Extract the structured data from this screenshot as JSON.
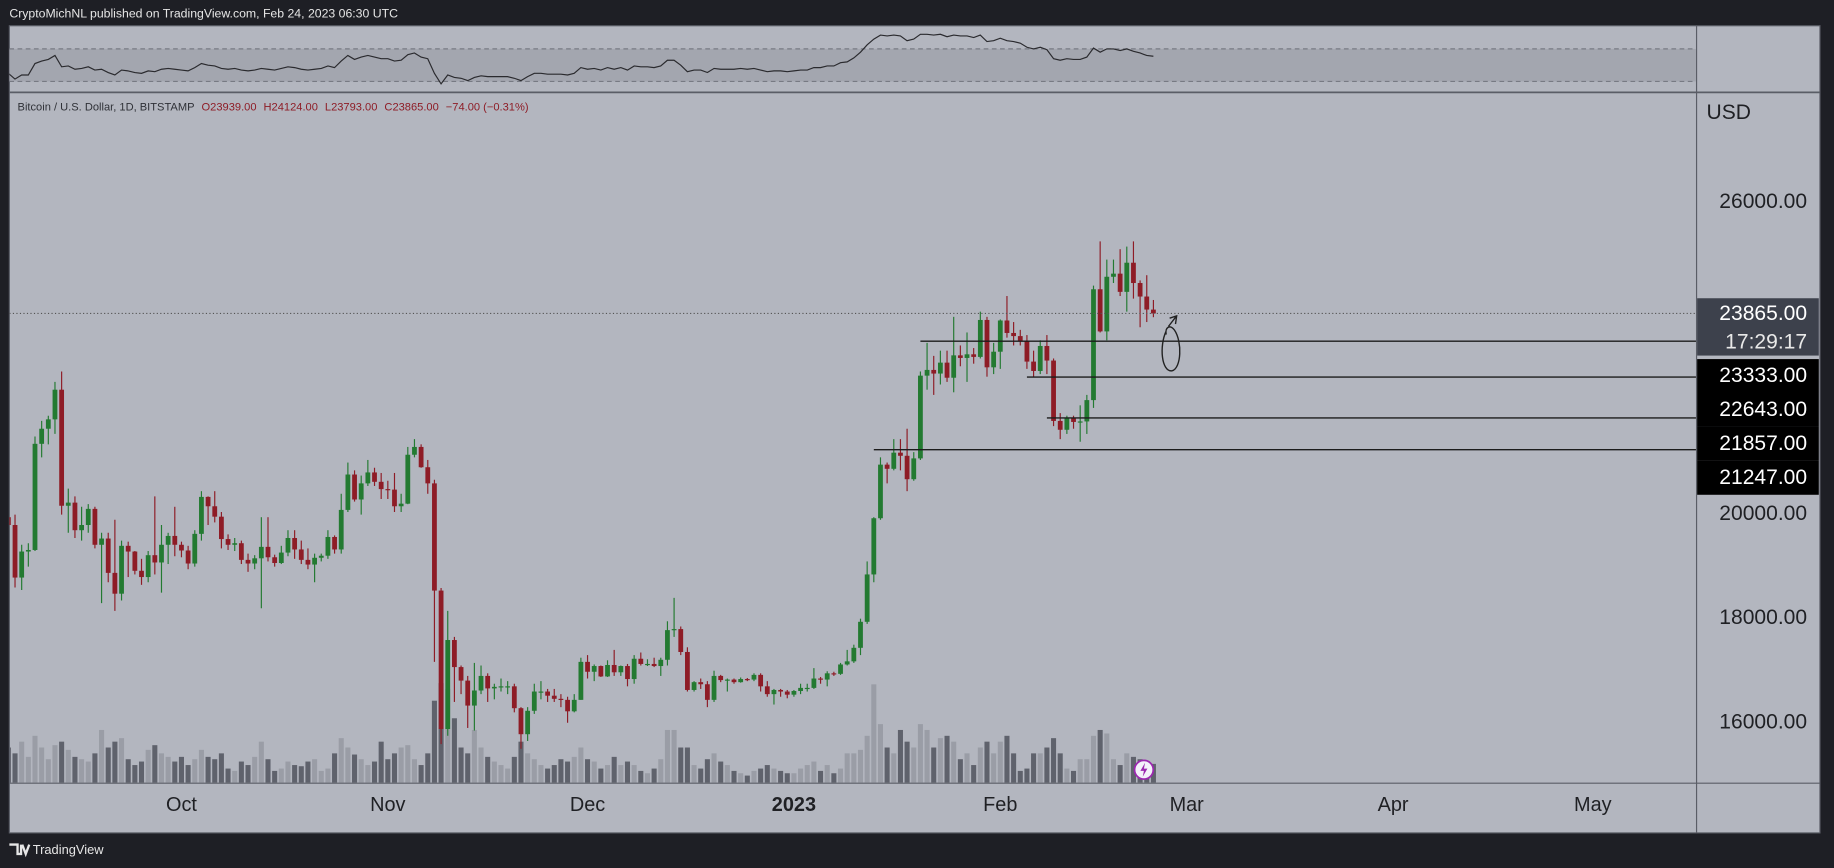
{
  "header": {
    "publisher": "CryptoMichNL published on TradingView.com, Feb 24, 2023 06:30 UTC"
  },
  "footer": {
    "brand": "TradingView"
  },
  "chart_data": {
    "type": "candlestick",
    "symbol": "Bitcoin / U.S. Dollar, 1D, BITSTAMP",
    "ohlc_legend": [
      "O23939.00",
      "H24124.00",
      "L23793.00",
      "C23865.00",
      "−74.00 (−0.31%)"
    ],
    "currency": "USD",
    "xlim": [
      0.5,
      253.5
    ],
    "ylim": [
      14850,
      28090
    ],
    "xticks": [
      {
        "value": 26,
        "label": "Oct"
      },
      {
        "value": 57,
        "label": "Nov"
      },
      {
        "value": 87,
        "label": "Dec"
      },
      {
        "value": 118,
        "label": "2023"
      },
      {
        "value": 149,
        "label": "Feb"
      },
      {
        "value": 177,
        "label": "Mar"
      },
      {
        "value": 208,
        "label": "Apr"
      },
      {
        "value": 238,
        "label": "May"
      }
    ],
    "yticks": [
      {
        "value": 16000,
        "label": "16000.00"
      },
      {
        "value": 18000,
        "label": "18000.00"
      },
      {
        "value": 20000,
        "label": "20000.00"
      },
      {
        "value": 26000,
        "label": "26000.00"
      }
    ],
    "grid": false,
    "colors": {
      "up": "#237a31",
      "down": "#8e1c26",
      "volume_up": "#9a9da6",
      "volume_down": "#5f626c",
      "rsi": "#2a2a2e",
      "level": "#1c1c1c"
    },
    "last_price": {
      "value": 23865,
      "label": "23865.00"
    },
    "countdown": "17:29:17",
    "levels": [
      {
        "value": 23333,
        "label": "23333.00",
        "start": 137
      },
      {
        "value": 22643,
        "label": "22643.00",
        "start": 153
      },
      {
        "value": 21857,
        "label": "21857.00",
        "start": 156
      },
      {
        "value": 21247,
        "label": "21247.00",
        "start": 130
      }
    ],
    "ohlc": [
      [
        19950,
        20050,
        19600,
        19800
      ],
      [
        19800,
        20000,
        18600,
        18790
      ],
      [
        18790,
        19420,
        18550,
        19290
      ],
      [
        19290,
        19450,
        19000,
        19320
      ],
      [
        19320,
        21500,
        19300,
        21360
      ],
      [
        21360,
        21800,
        21100,
        21650
      ],
      [
        21650,
        21900,
        21350,
        21830
      ],
      [
        21830,
        22550,
        21550,
        22400
      ],
      [
        22400,
        22750,
        20000,
        20170
      ],
      [
        20170,
        20500,
        19650,
        20230
      ],
      [
        20230,
        20350,
        19550,
        19700
      ],
      [
        19700,
        20150,
        19500,
        19800
      ],
      [
        19800,
        20200,
        19650,
        20110
      ],
      [
        20110,
        20150,
        19350,
        19420
      ],
      [
        19420,
        19650,
        18300,
        19540
      ],
      [
        19540,
        19650,
        18700,
        18880
      ],
      [
        18880,
        19900,
        18150,
        18480
      ],
      [
        18480,
        19500,
        18350,
        19400
      ],
      [
        19400,
        19480,
        18800,
        19290
      ],
      [
        19290,
        19300,
        18850,
        18920
      ],
      [
        18920,
        19150,
        18650,
        18800
      ],
      [
        18800,
        19300,
        18700,
        19220
      ],
      [
        19220,
        20350,
        18850,
        19080
      ],
      [
        19080,
        19800,
        18500,
        19420
      ],
      [
        19420,
        19650,
        19050,
        19590
      ],
      [
        19590,
        20150,
        19200,
        19420
      ],
      [
        19420,
        19480,
        19180,
        19310
      ],
      [
        19310,
        19400,
        18950,
        19060
      ],
      [
        19060,
        19700,
        19000,
        19630
      ],
      [
        19630,
        20450,
        19500,
        20340
      ],
      [
        20340,
        20350,
        19800,
        20160
      ],
      [
        20160,
        20450,
        19850,
        19960
      ],
      [
        19960,
        20050,
        19350,
        19530
      ],
      [
        19530,
        19620,
        19320,
        19420
      ],
      [
        19420,
        19550,
        19300,
        19450
      ],
      [
        19450,
        19500,
        19050,
        19130
      ],
      [
        19130,
        19250,
        18900,
        19060
      ],
      [
        19060,
        19220,
        18950,
        19160
      ],
      [
        19160,
        19950,
        18200,
        19380
      ],
      [
        19380,
        19950,
        19100,
        19180
      ],
      [
        19180,
        19230,
        19000,
        19070
      ],
      [
        19070,
        19400,
        19050,
        19270
      ],
      [
        19270,
        19700,
        19200,
        19550
      ],
      [
        19550,
        19700,
        19150,
        19330
      ],
      [
        19330,
        19500,
        19050,
        19130
      ],
      [
        19130,
        19350,
        18950,
        19040
      ],
      [
        19040,
        19250,
        18700,
        19170
      ],
      [
        19170,
        19250,
        19100,
        19210
      ],
      [
        19210,
        19700,
        19150,
        19570
      ],
      [
        19570,
        19600,
        19250,
        19330
      ],
      [
        19330,
        20400,
        19250,
        20090
      ],
      [
        20090,
        21000,
        20050,
        20770
      ],
      [
        20770,
        20850,
        20250,
        20290
      ],
      [
        20290,
        20750,
        20000,
        20600
      ],
      [
        20600,
        21050,
        20550,
        20810
      ],
      [
        20810,
        20900,
        20550,
        20630
      ],
      [
        20630,
        20800,
        20300,
        20490
      ],
      [
        20490,
        20650,
        20300,
        20480
      ],
      [
        20480,
        20800,
        20050,
        20160
      ],
      [
        20160,
        20400,
        20050,
        20210
      ],
      [
        20210,
        21300,
        20200,
        21150
      ],
      [
        21150,
        21450,
        21100,
        21300
      ],
      [
        21300,
        21350,
        20900,
        20910
      ],
      [
        20910,
        21050,
        20400,
        20600
      ],
      [
        20600,
        20670,
        17170,
        18540
      ],
      [
        18540,
        18590,
        15590,
        15880
      ],
      [
        15880,
        18150,
        15750,
        17590
      ],
      [
        17590,
        17650,
        16400,
        17070
      ],
      [
        17070,
        17100,
        16550,
        16810
      ],
      [
        16810,
        16900,
        15900,
        16330
      ],
      [
        16330,
        17150,
        15850,
        16620
      ],
      [
        16620,
        17100,
        16550,
        16900
      ],
      [
        16900,
        16950,
        16400,
        16660
      ],
      [
        16660,
        16750,
        16450,
        16690
      ],
      [
        16690,
        16850,
        16600,
        16700
      ],
      [
        16700,
        16800,
        16550,
        16700
      ],
      [
        16700,
        16750,
        16200,
        16280
      ],
      [
        16280,
        16300,
        15500,
        15780
      ],
      [
        15780,
        16300,
        15650,
        16230
      ],
      [
        16230,
        16750,
        16170,
        16600
      ],
      [
        16600,
        16800,
        16450,
        16600
      ],
      [
        16600,
        16650,
        16400,
        16520
      ],
      [
        16520,
        16650,
        16400,
        16460
      ],
      [
        16460,
        16550,
        16300,
        16440
      ],
      [
        16440,
        16500,
        16000,
        16220
      ],
      [
        16220,
        16550,
        16200,
        16440
      ],
      [
        16440,
        17250,
        16440,
        17170
      ],
      [
        17170,
        17300,
        16850,
        16980
      ],
      [
        16980,
        17120,
        16800,
        17090
      ],
      [
        17090,
        17100,
        16880,
        16890
      ],
      [
        16890,
        17200,
        16880,
        17110
      ],
      [
        17110,
        17400,
        16900,
        16970
      ],
      [
        16970,
        17100,
        16900,
        17090
      ],
      [
        17090,
        17130,
        16700,
        16840
      ],
      [
        16840,
        17300,
        16750,
        17230
      ],
      [
        17230,
        17350,
        17100,
        17130
      ],
      [
        17130,
        17220,
        17090,
        17130
      ],
      [
        17130,
        17250,
        17070,
        17090
      ],
      [
        17090,
        17250,
        16900,
        17210
      ],
      [
        17210,
        17950,
        17100,
        17780
      ],
      [
        17780,
        18400,
        17650,
        17800
      ],
      [
        17800,
        17850,
        17300,
        17360
      ],
      [
        17360,
        17450,
        16600,
        16630
      ],
      [
        16630,
        16800,
        16600,
        16780
      ],
      [
        16780,
        16850,
        16650,
        16740
      ],
      [
        16740,
        16800,
        16300,
        16440
      ],
      [
        16440,
        17000,
        16400,
        16900
      ],
      [
        16900,
        16920,
        16780,
        16820
      ],
      [
        16820,
        16850,
        16600,
        16830
      ],
      [
        16830,
        16850,
        16750,
        16780
      ],
      [
        16780,
        16870,
        16770,
        16840
      ],
      [
        16840,
        16860,
        16800,
        16830
      ],
      [
        16830,
        16950,
        16800,
        16920
      ],
      [
        16920,
        16950,
        16600,
        16700
      ],
      [
        16700,
        16800,
        16500,
        16550
      ],
      [
        16550,
        16650,
        16350,
        16630
      ],
      [
        16630,
        16650,
        16500,
        16600
      ],
      [
        16600,
        16630,
        16470,
        16540
      ],
      [
        16540,
        16630,
        16500,
        16610
      ],
      [
        16610,
        16750,
        16550,
        16670
      ],
      [
        16670,
        16750,
        16600,
        16670
      ],
      [
        16670,
        17050,
        16650,
        16850
      ],
      [
        16850,
        16880,
        16750,
        16830
      ],
      [
        16830,
        16990,
        16700,
        16950
      ],
      [
        16950,
        16980,
        16900,
        16940
      ],
      [
        16940,
        17150,
        16920,
        17120
      ],
      [
        17120,
        17400,
        17100,
        17180
      ],
      [
        17180,
        17500,
        17150,
        17440
      ],
      [
        17440,
        18000,
        17300,
        17940
      ],
      [
        17940,
        19100,
        17900,
        18850
      ],
      [
        18850,
        19950,
        18700,
        19930
      ],
      [
        19930,
        21100,
        19900,
        20960
      ],
      [
        20960,
        21000,
        20600,
        20880
      ],
      [
        20880,
        21450,
        20850,
        21190
      ],
      [
        21190,
        21450,
        20850,
        21130
      ],
      [
        21130,
        21650,
        20450,
        20680
      ],
      [
        20680,
        21200,
        20650,
        21080
      ],
      [
        21080,
        22750,
        21050,
        22670
      ],
      [
        22670,
        23300,
        22400,
        22780
      ],
      [
        22780,
        23050,
        22300,
        22710
      ],
      [
        22710,
        23150,
        22500,
        22920
      ],
      [
        22920,
        23150,
        22550,
        22630
      ],
      [
        22630,
        23800,
        22350,
        23060
      ],
      [
        23060,
        23250,
        22850,
        23010
      ],
      [
        23010,
        23500,
        22550,
        23080
      ],
      [
        23080,
        23200,
        22900,
        23030
      ],
      [
        23030,
        23900,
        23000,
        23740
      ],
      [
        23740,
        23800,
        22650,
        22830
      ],
      [
        22830,
        23300,
        22700,
        23130
      ],
      [
        23130,
        23750,
        22800,
        23730
      ],
      [
        23730,
        24200,
        23400,
        23490
      ],
      [
        23490,
        23700,
        23250,
        23430
      ],
      [
        23430,
        23550,
        23250,
        23330
      ],
      [
        23330,
        23450,
        22800,
        22940
      ],
      [
        22940,
        23150,
        22650,
        22760
      ],
      [
        22760,
        23350,
        22700,
        23240
      ],
      [
        23240,
        23450,
        22700,
        22960
      ],
      [
        22960,
        23000,
        21700,
        21800
      ],
      [
        21800,
        21950,
        21450,
        21630
      ],
      [
        21630,
        21900,
        21550,
        21860
      ],
      [
        21860,
        21900,
        21650,
        21780
      ],
      [
        21780,
        22100,
        21400,
        21790
      ],
      [
        21790,
        22300,
        21550,
        22200
      ],
      [
        22200,
        24400,
        22050,
        24330
      ],
      [
        24330,
        25250,
        23500,
        23520
      ],
      [
        23520,
        24900,
        23350,
        24570
      ],
      [
        24570,
        24900,
        24450,
        24630
      ],
      [
        24630,
        25100,
        24200,
        24280
      ],
      [
        24280,
        25150,
        23900,
        24840
      ],
      [
        24840,
        25250,
        24150,
        24450
      ],
      [
        24450,
        24500,
        23600,
        24190
      ],
      [
        24190,
        24600,
        23700,
        23940
      ],
      [
        23939,
        24124,
        23793,
        23865
      ]
    ],
    "volume_lim": [
      0,
      100
    ],
    "volume": [
      30,
      25,
      35,
      22,
      40,
      30,
      20,
      32,
      35,
      28,
      22,
      20,
      18,
      25,
      45,
      30,
      35,
      38,
      20,
      15,
      18,
      28,
      32,
      25,
      22,
      18,
      22,
      15,
      20,
      28,
      22,
      20,
      25,
      12,
      10,
      18,
      15,
      22,
      35,
      20,
      10,
      12,
      18,
      15,
      14,
      18,
      20,
      10,
      12,
      25,
      38,
      30,
      24,
      20,
      15,
      18,
      35,
      20,
      25,
      30,
      32,
      20,
      15,
      25,
      70,
      85,
      80,
      55,
      30,
      25,
      45,
      30,
      22,
      18,
      15,
      12,
      22,
      35,
      25,
      20,
      15,
      12,
      15,
      20,
      18,
      22,
      30,
      20,
      18,
      12,
      15,
      22,
      15,
      18,
      15,
      10,
      8,
      12,
      20,
      45,
      45,
      30,
      30,
      15,
      12,
      20,
      25,
      18,
      15,
      10,
      8,
      6,
      10,
      12,
      15,
      12,
      10,
      8,
      8,
      12,
      15,
      18,
      10,
      15,
      8,
      12,
      25,
      25,
      28,
      40,
      84,
      50,
      30,
      25,
      45,
      35,
      30,
      50,
      45,
      30,
      38,
      40,
      35,
      20,
      25,
      15,
      30,
      35,
      25,
      35,
      40,
      25,
      10,
      12,
      25,
      25,
      30,
      38,
      25,
      12,
      10,
      20,
      20,
      40,
      45,
      42,
      20,
      15,
      25,
      22,
      20,
      18,
      16
    ],
    "rsi_lim": [
      18,
      97
    ],
    "rsi_bands": [
      30,
      70
    ],
    "rsi": [
      40,
      33,
      38,
      38,
      52,
      55,
      57,
      62,
      48,
      49,
      45,
      46,
      48,
      44,
      45,
      41,
      38,
      44,
      43,
      41,
      40,
      43,
      42,
      45,
      46,
      45,
      44,
      43,
      47,
      52,
      50,
      49,
      46,
      45,
      46,
      44,
      43,
      44,
      46,
      45,
      44,
      46,
      48,
      47,
      45,
      44,
      45,
      46,
      49,
      47,
      55,
      62,
      57,
      60,
      62,
      60,
      58,
      58,
      55,
      56,
      63,
      65,
      60,
      58,
      40,
      27,
      38,
      35,
      34,
      31,
      35,
      37,
      36,
      36,
      36,
      36,
      34,
      31,
      36,
      40,
      40,
      39,
      39,
      39,
      38,
      40,
      47,
      45,
      46,
      44,
      47,
      45,
      47,
      44,
      49,
      48,
      48,
      47,
      49,
      56,
      56,
      50,
      42,
      44,
      44,
      41,
      46,
      45,
      45,
      45,
      46,
      45,
      46,
      44,
      42,
      43,
      43,
      42,
      43,
      44,
      44,
      47,
      47,
      49,
      49,
      53,
      54,
      59,
      66,
      75,
      82,
      87,
      86,
      87,
      86,
      80,
      82,
      88,
      88,
      87,
      88,
      85,
      87,
      86,
      86,
      84,
      87,
      79,
      80,
      83,
      80,
      79,
      77,
      72,
      70,
      72,
      69,
      58,
      56,
      58,
      57,
      57,
      60,
      71,
      66,
      70,
      70,
      68,
      70,
      67,
      65,
      62,
      61
    ]
  }
}
